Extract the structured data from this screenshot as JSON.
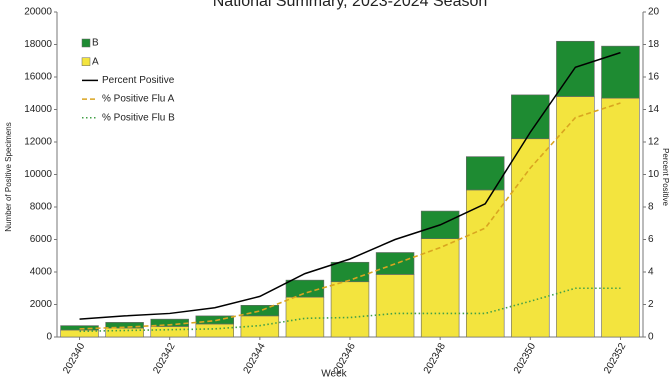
{
  "chart_data": {
    "type": "bar",
    "title": "National Summary, 2023-2024 Season",
    "x_label": "Week",
    "y_label": "Number of Positive Specimens",
    "y2_label": "Percent Positive",
    "categories": [
      "202340",
      null,
      "202342",
      null,
      "202344",
      null,
      "202346",
      null,
      "202348",
      null,
      "202350",
      null,
      "202352"
    ],
    "series": [
      {
        "name": "B",
        "type": "bar",
        "color": "#1e8b32",
        "values": [
          270,
          350,
          450,
          500,
          650,
          1050,
          1200,
          1350,
          1700,
          2050,
          2700,
          3400,
          3200
        ]
      },
      {
        "name": "A",
        "type": "bar",
        "color": "#f3e43e",
        "values": [
          430,
          550,
          650,
          800,
          1300,
          2450,
          3400,
          3850,
          6050,
          9050,
          12200,
          14800,
          14700
        ]
      },
      {
        "name": "Percent Positive",
        "type": "line",
        "axis": "y2",
        "color": "#000000",
        "dash": "solid",
        "values": [
          1.1,
          1.3,
          1.45,
          1.8,
          2.5,
          3.9,
          4.8,
          6.0,
          6.9,
          8.2,
          12.6,
          16.6,
          17.5
        ]
      },
      {
        "name": "% Positive Flu A",
        "type": "line",
        "axis": "y2",
        "color": "#d9a520",
        "dash": "dashed",
        "values": [
          0.5,
          0.6,
          0.75,
          1.0,
          1.6,
          2.7,
          3.5,
          4.5,
          5.5,
          6.7,
          10.4,
          13.5,
          14.4
        ]
      },
      {
        "name": "% Positive Flu B",
        "type": "line",
        "axis": "y2",
        "color": "#43a047",
        "dash": "dotted",
        "values": [
          0.35,
          0.4,
          0.45,
          0.5,
          0.7,
          1.15,
          1.2,
          1.45,
          1.45,
          1.45,
          2.2,
          3.0,
          3.0
        ]
      }
    ],
    "ylim": [
      0,
      20000
    ],
    "yticks": [
      0,
      2000,
      4000,
      6000,
      8000,
      10000,
      12000,
      14000,
      16000,
      18000,
      20000
    ],
    "y2lim": [
      0,
      20
    ],
    "y2ticks": [
      0,
      2,
      4,
      6,
      8,
      10,
      12,
      14,
      16,
      18,
      20
    ],
    "legend": "upper left"
  }
}
